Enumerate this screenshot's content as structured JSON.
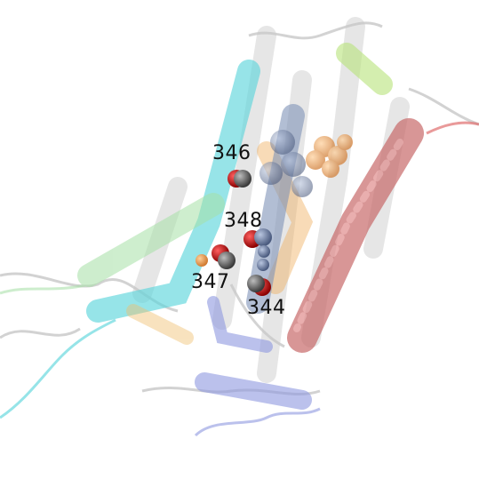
{
  "figure": {
    "labels": {
      "r346": "346",
      "r348": "348",
      "r347": "347",
      "r344": "344"
    },
    "colors": {
      "grey_helix": "#cfcfcf",
      "cyan_helix": "#5fd6dc",
      "green_helix": "#a6e0a6",
      "lime_helix": "#b8e27a",
      "blue_helix": "#8e98e0",
      "slate_helix": "#7f93b8",
      "red_helix": "#c86a6a",
      "orange_helix": "#f0b060",
      "sphere_grey": "#555555",
      "sphere_red": "#cc0000",
      "sphere_slate": "#6f7fa0",
      "sphere_orange": "#e89a50"
    }
  }
}
